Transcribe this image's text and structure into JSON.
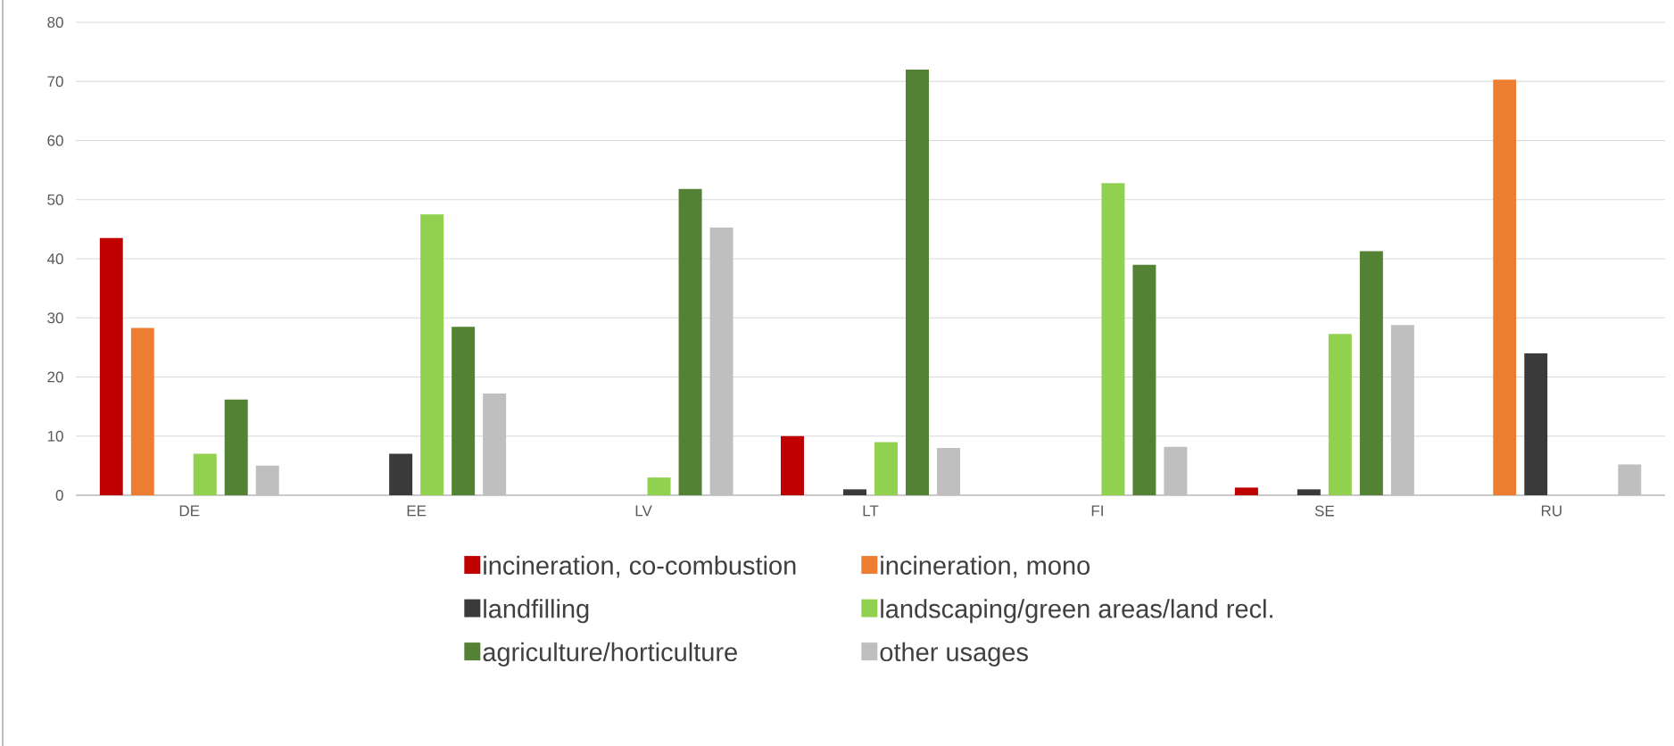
{
  "chart_data": {
    "type": "bar",
    "categories": [
      "DE",
      "EE",
      "LV",
      "LT",
      "FI",
      "SE",
      "RU"
    ],
    "series": [
      {
        "name": "incineration, co-combustion",
        "color": "#c00000",
        "values": [
          43.5,
          0,
          0,
          10,
          0,
          1.3,
          0
        ]
      },
      {
        "name": "incineration, mono",
        "color": "#ed7d31",
        "values": [
          28.3,
          0,
          0,
          0,
          0,
          0,
          70.3
        ]
      },
      {
        "name": "landfilling",
        "color": "#3a3a3a",
        "values": [
          0,
          7,
          0,
          1,
          0,
          1,
          24
        ]
      },
      {
        "name": "landscaping/green areas/land recl.",
        "color": "#92d050",
        "values": [
          7,
          47.5,
          3,
          9,
          52.8,
          27.3,
          0
        ]
      },
      {
        "name": "agriculture/horticulture",
        "color": "#548235",
        "values": [
          16.2,
          28.5,
          51.8,
          72,
          39,
          41.3,
          0
        ]
      },
      {
        "name": "other usages",
        "color": "#bfbfbf",
        "values": [
          5,
          17.2,
          45.3,
          8,
          8.2,
          28.8,
          5.2
        ]
      }
    ],
    "ylim": [
      0,
      80
    ],
    "yticks": [
      0,
      10,
      20,
      30,
      40,
      50,
      60,
      70,
      80
    ],
    "grid": "y",
    "legend": "bottom"
  }
}
